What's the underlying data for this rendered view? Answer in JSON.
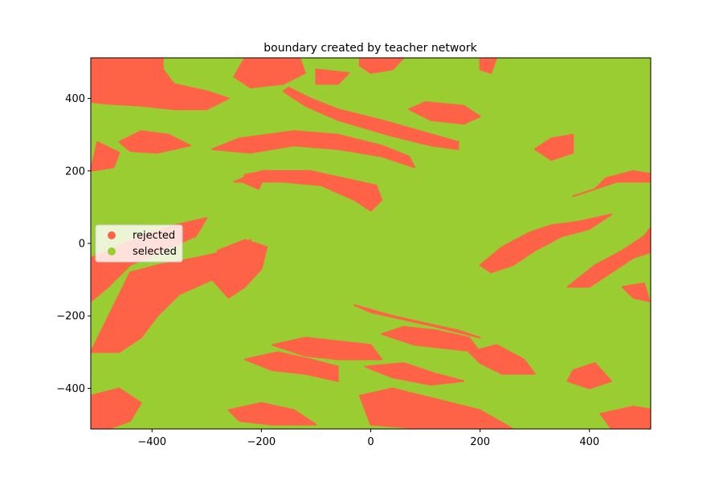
{
  "chart_data": {
    "type": "scatter",
    "title": "boundary created by teacher network",
    "xlabel": "",
    "ylabel": "",
    "xlim": [
      -512,
      512
    ],
    "ylim": [
      -512,
      512
    ],
    "xticks": [
      -400,
      -200,
      0,
      200,
      400
    ],
    "yticks": [
      -400,
      -200,
      0,
      200,
      400
    ],
    "xtick_labels": [
      "−400",
      "−200",
      "0",
      "200",
      "400"
    ],
    "ytick_labels": [
      "−400",
      "−200",
      "0",
      "200",
      "400"
    ],
    "grid": false,
    "legend_position": "center-left",
    "series": [
      {
        "name": "rejected",
        "color": "#ff6347"
      },
      {
        "name": "selected",
        "color": "#9acd32"
      }
    ],
    "rejected_regions": [
      [
        [
          -512,
          512
        ],
        [
          -380,
          512
        ],
        [
          -380,
          480
        ],
        [
          -360,
          440
        ],
        [
          -300,
          420
        ],
        [
          -260,
          400
        ],
        [
          -300,
          370
        ],
        [
          -360,
          370
        ],
        [
          -420,
          380
        ],
        [
          -480,
          385
        ],
        [
          -512,
          390
        ]
      ],
      [
        [
          -230,
          512
        ],
        [
          -130,
          512
        ],
        [
          -120,
          470
        ],
        [
          -160,
          440
        ],
        [
          -220,
          430
        ],
        [
          -250,
          460
        ]
      ],
      [
        [
          -20,
          512
        ],
        [
          60,
          512
        ],
        [
          40,
          480
        ],
        [
          0,
          470
        ],
        [
          -20,
          490
        ]
      ],
      [
        [
          200,
          512
        ],
        [
          230,
          512
        ],
        [
          220,
          470
        ],
        [
          200,
          480
        ]
      ],
      [
        [
          -100,
          480
        ],
        [
          -40,
          470
        ],
        [
          -60,
          440
        ],
        [
          -100,
          440
        ]
      ],
      [
        [
          -460,
          280
        ],
        [
          -420,
          310
        ],
        [
          -370,
          300
        ],
        [
          -330,
          270
        ],
        [
          -390,
          250
        ],
        [
          -440,
          255
        ]
      ],
      [
        [
          -290,
          260
        ],
        [
          -240,
          290
        ],
        [
          -140,
          310
        ],
        [
          -60,
          300
        ],
        [
          20,
          270
        ],
        [
          70,
          240
        ],
        [
          80,
          210
        ],
        [
          20,
          240
        ],
        [
          -60,
          260
        ],
        [
          -140,
          270
        ],
        [
          -220,
          250
        ]
      ],
      [
        [
          -160,
          420
        ],
        [
          -120,
          380
        ],
        [
          -60,
          340
        ],
        [
          30,
          300
        ],
        [
          110,
          270
        ],
        [
          160,
          260
        ],
        [
          160,
          280
        ],
        [
          90,
          310
        ],
        [
          20,
          340
        ],
        [
          -60,
          370
        ],
        [
          -110,
          400
        ],
        [
          -150,
          430
        ]
      ],
      [
        [
          70,
          370
        ],
        [
          110,
          340
        ],
        [
          170,
          330
        ],
        [
          200,
          350
        ],
        [
          170,
          380
        ],
        [
          100,
          390
        ]
      ],
      [
        [
          -500,
          280
        ],
        [
          -460,
          250
        ],
        [
          -470,
          210
        ],
        [
          -512,
          200
        ]
      ],
      [
        [
          -230,
          190
        ],
        [
          -190,
          200
        ],
        [
          -205,
          150
        ],
        [
          -235,
          170
        ]
      ],
      [
        [
          -250,
          170
        ],
        [
          -200,
          200
        ],
        [
          -110,
          200
        ],
        [
          -50,
          180
        ],
        [
          10,
          160
        ],
        [
          20,
          120
        ],
        [
          0,
          90
        ],
        [
          -30,
          120
        ],
        [
          -90,
          160
        ],
        [
          -160,
          170
        ]
      ],
      [
        [
          370,
          300
        ],
        [
          330,
          290
        ],
        [
          300,
          260
        ],
        [
          330,
          230
        ],
        [
          370,
          250
        ]
      ],
      [
        [
          520,
          190
        ],
        [
          480,
          200
        ],
        [
          430,
          180
        ],
        [
          410,
          150
        ],
        [
          370,
          130
        ],
        [
          450,
          170
        ],
        [
          520,
          170
        ]
      ],
      [
        [
          -512,
          -40
        ],
        [
          -480,
          -20
        ],
        [
          -420,
          20
        ],
        [
          -360,
          50
        ],
        [
          -300,
          70
        ],
        [
          -320,
          20
        ],
        [
          -380,
          -20
        ],
        [
          -440,
          -60
        ],
        [
          -480,
          -120
        ],
        [
          -512,
          -160
        ]
      ],
      [
        [
          -440,
          -80
        ],
        [
          -390,
          -60
        ],
        [
          -320,
          -40
        ],
        [
          -260,
          -20
        ],
        [
          -220,
          10
        ],
        [
          -240,
          -60
        ],
        [
          -290,
          -100
        ],
        [
          -350,
          -140
        ],
        [
          -390,
          -200
        ],
        [
          -420,
          -260
        ],
        [
          -460,
          -300
        ],
        [
          -512,
          -300
        ]
      ],
      [
        [
          -280,
          -20
        ],
        [
          -230,
          10
        ],
        [
          -190,
          -10
        ],
        [
          -200,
          -70
        ],
        [
          -230,
          -120
        ],
        [
          -260,
          -150
        ],
        [
          -290,
          -100
        ]
      ],
      [
        [
          200,
          -60
        ],
        [
          240,
          -10
        ],
        [
          290,
          30
        ],
        [
          330,
          50
        ],
        [
          380,
          60
        ],
        [
          440,
          80
        ],
        [
          400,
          40
        ],
        [
          350,
          20
        ],
        [
          300,
          -20
        ],
        [
          260,
          -60
        ],
        [
          220,
          -80
        ]
      ],
      [
        [
          360,
          -120
        ],
        [
          410,
          -60
        ],
        [
          460,
          -20
        ],
        [
          500,
          20
        ],
        [
          520,
          60
        ],
        [
          520,
          -20
        ],
        [
          480,
          -40
        ],
        [
          440,
          -80
        ],
        [
          400,
          -120
        ]
      ],
      [
        [
          -30,
          -170
        ],
        [
          40,
          -200
        ],
        [
          100,
          -220
        ],
        [
          160,
          -240
        ],
        [
          200,
          -260
        ],
        [
          120,
          -230
        ],
        [
          60,
          -210
        ],
        [
          0,
          -190
        ]
      ],
      [
        [
          -180,
          -280
        ],
        [
          -120,
          -260
        ],
        [
          -60,
          -270
        ],
        [
          0,
          -280
        ],
        [
          20,
          -320
        ],
        [
          -60,
          -320
        ],
        [
          -120,
          -310
        ]
      ],
      [
        [
          20,
          -250
        ],
        [
          60,
          -230
        ],
        [
          120,
          -240
        ],
        [
          180,
          -260
        ],
        [
          200,
          -300
        ],
        [
          140,
          -290
        ],
        [
          80,
          -280
        ]
      ],
      [
        [
          -230,
          -320
        ],
        [
          -170,
          -300
        ],
        [
          -110,
          -320
        ],
        [
          -60,
          -340
        ],
        [
          -60,
          -380
        ],
        [
          -120,
          -360
        ],
        [
          -180,
          -350
        ]
      ],
      [
        [
          -260,
          -460
        ],
        [
          -200,
          -440
        ],
        [
          -140,
          -460
        ],
        [
          -100,
          -500
        ],
        [
          -180,
          -500
        ],
        [
          -240,
          -490
        ]
      ],
      [
        [
          -10,
          -340
        ],
        [
          60,
          -330
        ],
        [
          120,
          -360
        ],
        [
          170,
          -380
        ],
        [
          110,
          -390
        ],
        [
          40,
          -370
        ]
      ],
      [
        [
          180,
          -300
        ],
        [
          230,
          -280
        ],
        [
          280,
          -320
        ],
        [
          300,
          -360
        ],
        [
          240,
          -360
        ],
        [
          200,
          -330
        ]
      ],
      [
        [
          -512,
          -420
        ],
        [
          -460,
          -400
        ],
        [
          -420,
          -440
        ],
        [
          -440,
          -490
        ],
        [
          -480,
          -512
        ],
        [
          -512,
          -512
        ]
      ],
      [
        [
          -20,
          -420
        ],
        [
          40,
          -400
        ],
        [
          120,
          -430
        ],
        [
          200,
          -460
        ],
        [
          260,
          -512
        ],
        [
          100,
          -512
        ],
        [
          0,
          -500
        ]
      ],
      [
        [
          370,
          -350
        ],
        [
          410,
          -330
        ],
        [
          440,
          -380
        ],
        [
          400,
          -400
        ],
        [
          360,
          -380
        ]
      ],
      [
        [
          420,
          -470
        ],
        [
          480,
          -450
        ],
        [
          520,
          -460
        ],
        [
          520,
          -512
        ],
        [
          440,
          -512
        ]
      ],
      [
        [
          460,
          -120
        ],
        [
          500,
          -110
        ],
        [
          510,
          -160
        ],
        [
          480,
          -150
        ]
      ]
    ]
  }
}
